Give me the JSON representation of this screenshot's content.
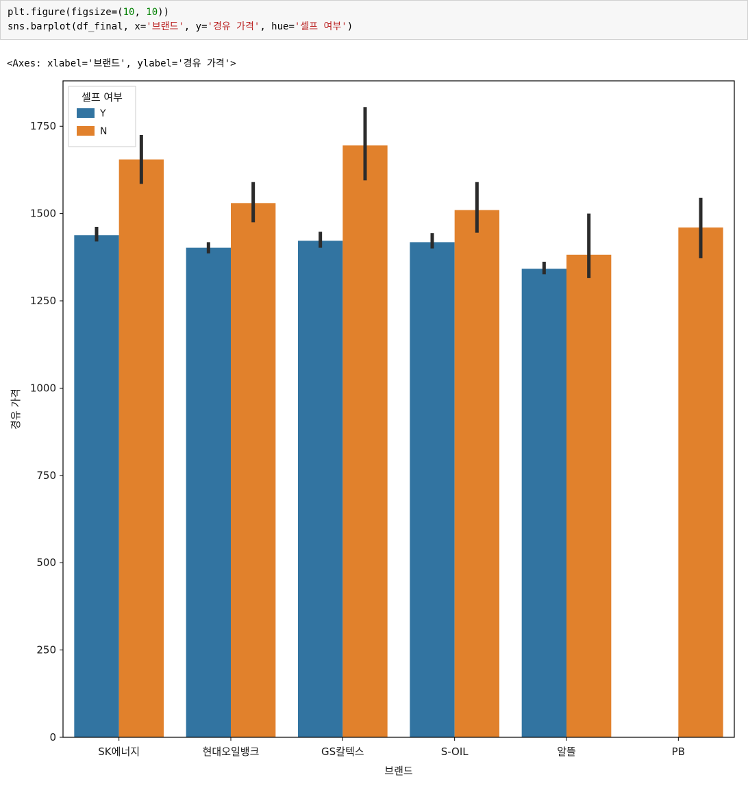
{
  "code": {
    "lines": [
      [
        {
          "t": "plt.figure(figsize=(",
          "c": "plain"
        },
        {
          "t": "10",
          "c": "num"
        },
        {
          "t": ", ",
          "c": "plain"
        },
        {
          "t": "10",
          "c": "num"
        },
        {
          "t": "))",
          "c": "plain"
        }
      ],
      [
        {
          "t": "sns.barplot(df_final, x=",
          "c": "plain"
        },
        {
          "t": "'브랜드'",
          "c": "str"
        },
        {
          "t": ", y=",
          "c": "plain"
        },
        {
          "t": "'경유 가격'",
          "c": "str"
        },
        {
          "t": ", hue=",
          "c": "plain"
        },
        {
          "t": "'셀프 여부'",
          "c": "str"
        },
        {
          "t": ")",
          "c": "plain"
        }
      ]
    ]
  },
  "output": {
    "text": "<Axes: xlabel='브랜드', ylabel='경유 가격'>"
  },
  "chart_data": {
    "type": "bar",
    "title": "",
    "xlabel": "브랜드",
    "ylabel": "경유 가격",
    "categories": [
      "SK에너지",
      "현대오일뱅크",
      "GS칼텍스",
      "S-OIL",
      "알뜰",
      "PB"
    ],
    "series": [
      {
        "name": "Y",
        "color": "#3274a1",
        "values": [
          1438,
          1402,
          1422,
          1418,
          1342,
          null
        ],
        "err_low": [
          1420,
          1386,
          1402,
          1400,
          1326,
          null
        ],
        "err_high": [
          1462,
          1418,
          1448,
          1444,
          1362,
          null
        ]
      },
      {
        "name": "N",
        "color": "#e1812c",
        "values": [
          1655,
          1530,
          1695,
          1510,
          1382,
          1460
        ],
        "err_low": [
          1585,
          1475,
          1595,
          1445,
          1315,
          1372
        ],
        "err_high": [
          1725,
          1590,
          1805,
          1590,
          1500,
          1545
        ]
      }
    ],
    "ylim": [
      0,
      1880
    ],
    "yticks": [
      0,
      250,
      500,
      750,
      1000,
      1250,
      1500,
      1750
    ],
    "legend_title": "셀프 여부",
    "legend_position": "upper-left",
    "grid": false,
    "error_bar_color": "#2b2b2b",
    "axis_color": "#000000"
  }
}
